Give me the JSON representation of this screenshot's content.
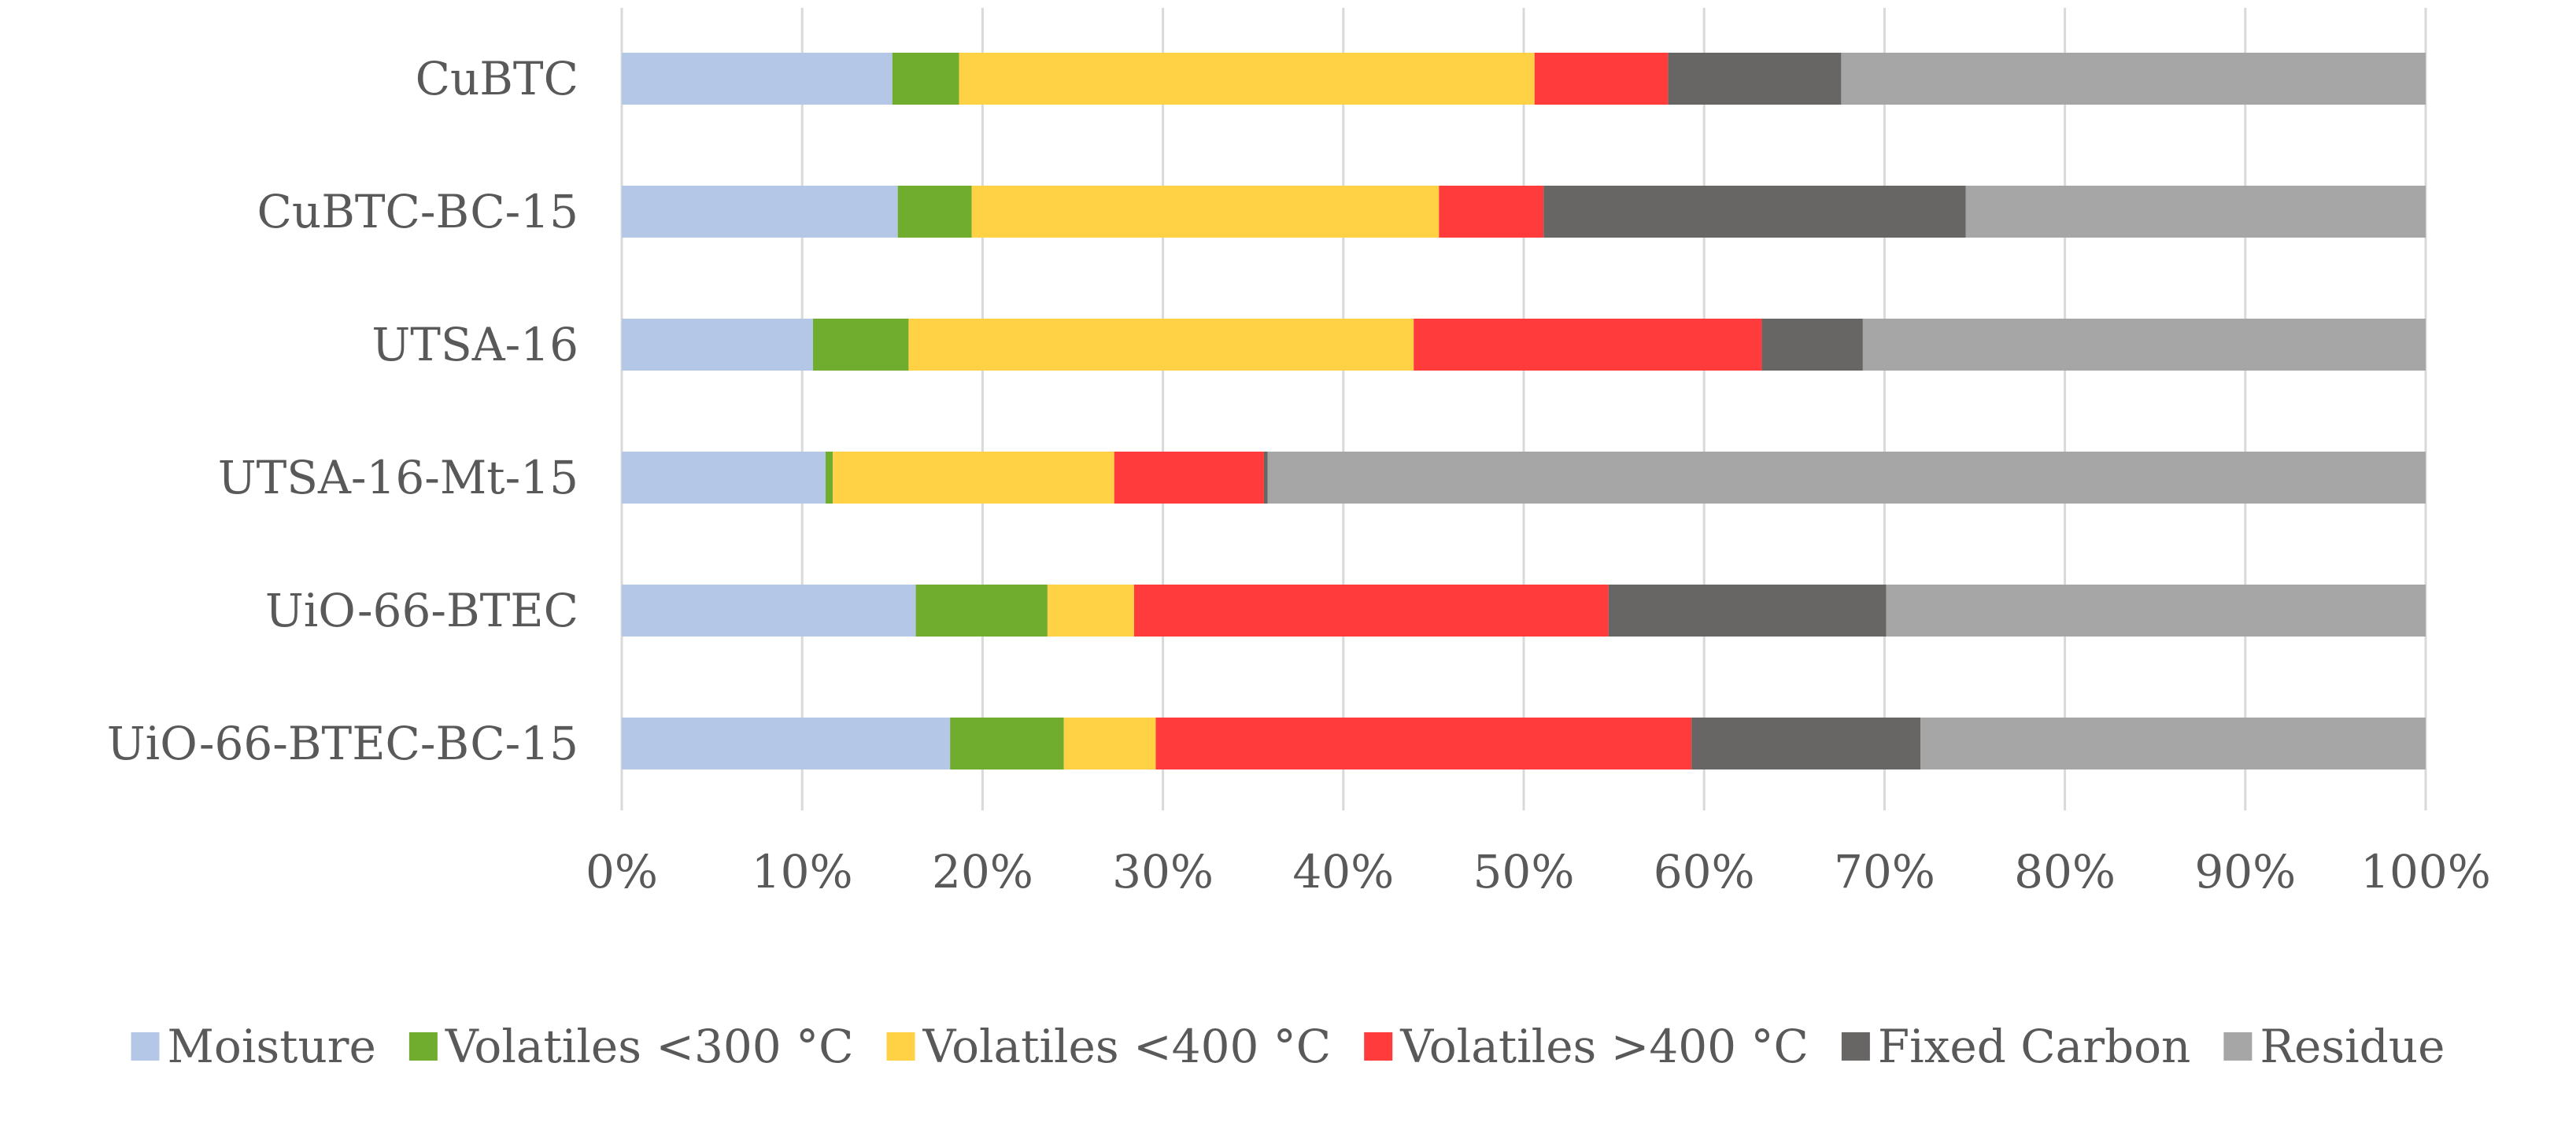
{
  "chart_data": {
    "type": "bar",
    "orientation": "horizontal",
    "stacked": true,
    "normalized": true,
    "title": "",
    "xlabel": "",
    "ylabel": "",
    "xlim": [
      0,
      100
    ],
    "grid": true,
    "legend_position": "bottom",
    "categories": [
      "CuBTC",
      "CuBTC-BC-15",
      "UTSA-16",
      "UTSA-16-Mt-15",
      "UiO-66-BTEC",
      "UiO-66-BTEC-BC-15"
    ],
    "x_ticks": [
      "0%",
      "10%",
      "20%",
      "30%",
      "40%",
      "50%",
      "60%",
      "70%",
      "80%",
      "90%",
      "100%"
    ],
    "series": [
      {
        "name": "Moisture",
        "color": "#b4c7e7",
        "values": [
          15.0,
          15.3,
          10.6,
          11.3,
          16.3,
          18.2
        ]
      },
      {
        "name": "Volatiles <300 °C",
        "color": "#70ad2f",
        "values": [
          3.7,
          4.1,
          5.3,
          0.4,
          7.3,
          6.3
        ]
      },
      {
        "name": "Volatiles <400 °C",
        "color": "#ffd145",
        "values": [
          31.9,
          25.9,
          28.0,
          15.6,
          4.8,
          5.1
        ]
      },
      {
        "name": "Volatiles >400 °C",
        "color": "#ff3b3b",
        "values": [
          7.4,
          5.8,
          19.3,
          8.3,
          26.3,
          29.7
        ]
      },
      {
        "name": "Fixed Carbon",
        "color": "#686565",
        "values": [
          9.6,
          23.4,
          5.6,
          0.2,
          15.4,
          12.7
        ]
      },
      {
        "name": "Residue",
        "color": "#a6a6a6",
        "values": [
          32.4,
          25.5,
          31.2,
          64.2,
          29.9,
          28.0
        ]
      }
    ]
  }
}
